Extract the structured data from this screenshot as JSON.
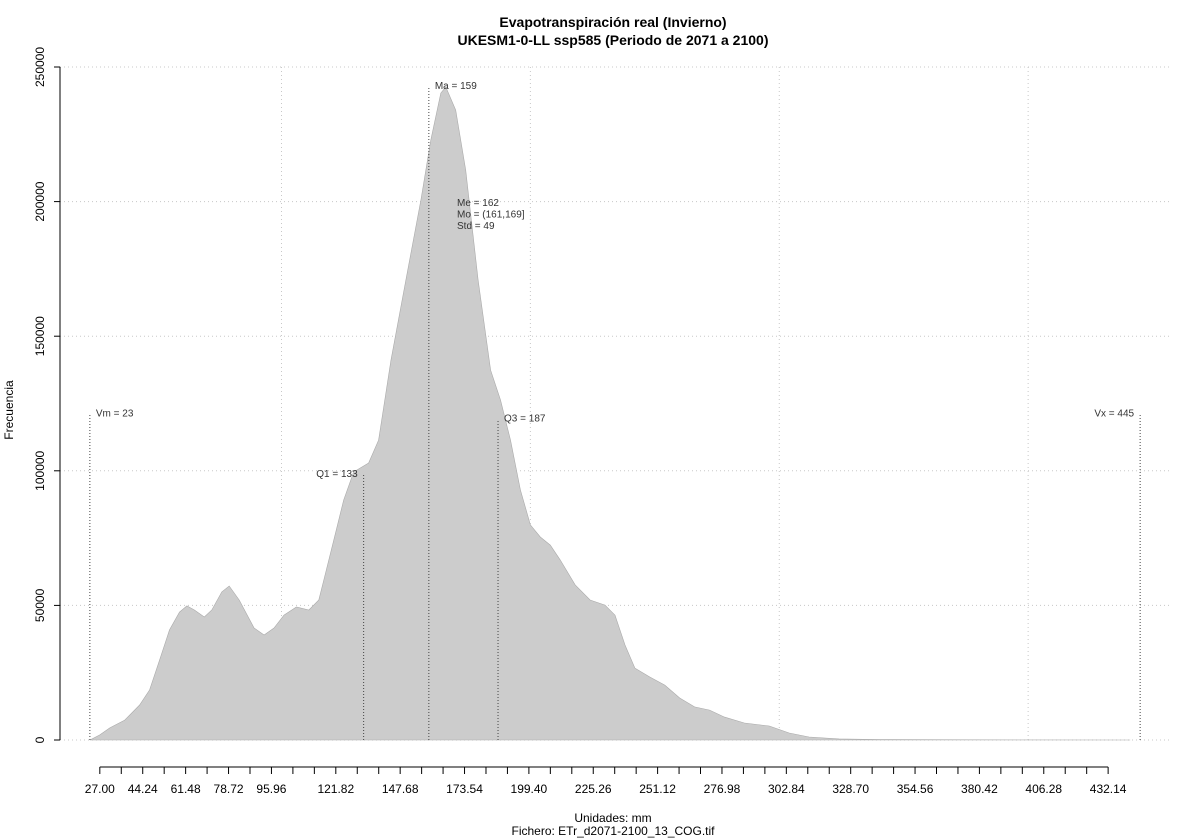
{
  "chart_data": {
    "type": "area",
    "title": "Evapotranspiración real (Invierno)",
    "subtitle": "UKESM1-0-LL ssp585 (Periodo de 2071 a 2100)",
    "xlabel": "Unidades: mm",
    "caption": "Fichero: ETr_d2071-2100_13_COG.tif",
    "ylabel": "Frecuencia",
    "color": "#cccccc",
    "x": [
      23,
      27,
      31,
      37,
      43,
      47,
      51,
      55,
      59,
      62,
      65,
      69,
      72,
      76,
      79,
      83,
      89,
      93,
      97,
      101,
      106,
      111,
      115,
      117,
      121,
      125,
      129,
      135,
      139,
      144,
      150,
      156,
      160,
      164,
      166,
      170,
      174,
      179,
      184,
      188,
      192,
      196,
      200,
      204,
      208,
      212,
      218,
      224,
      230,
      234,
      238,
      242,
      248,
      254,
      260,
      266,
      272,
      278,
      286,
      296,
      304,
      312,
      324,
      340,
      360,
      400,
      441
    ],
    "values": [
      0,
      1900,
      4500,
      7400,
      13000,
      18600,
      29700,
      40900,
      47500,
      49800,
      48300,
      45700,
      48300,
      55000,
      57200,
      52000,
      41600,
      39000,
      41600,
      46400,
      49400,
      48300,
      52000,
      59400,
      74300,
      89200,
      99600,
      102900,
      111400,
      141200,
      170900,
      200600,
      222900,
      240300,
      242600,
      234000,
      211700,
      170900,
      137400,
      126300,
      111400,
      92900,
      79900,
      75400,
      72400,
      66900,
      57600,
      52000,
      50100,
      46400,
      35300,
      26700,
      23400,
      20400,
      15600,
      12300,
      11100,
      8500,
      6300,
      5200,
      2600,
      1100,
      400,
      200,
      100,
      50,
      0
    ],
    "xlim": [
      11,
      457
    ],
    "ylim": [
      0,
      250000
    ],
    "yticks": [
      0,
      50000,
      100000,
      150000,
      200000,
      250000
    ],
    "xticks": [
      {
        "value": 27,
        "label": "27.00"
      },
      44.24,
      61.48,
      78.72,
      95.96,
      121.82,
      147.68,
      173.54,
      {
        "value": 199.4,
        "label": "199.40"
      },
      225.26,
      251.12,
      276.98,
      302.84,
      {
        "value": 328.7,
        "label": "328.70"
      },
      354.56,
      380.42,
      406.28,
      432.14
    ],
    "xminor_ticks": [
      35.62,
      52.86,
      70.1,
      87.34,
      104.58,
      113.2,
      130.44,
      139.06,
      156.3,
      164.92,
      182.16,
      190.78,
      208.02,
      216.64,
      233.88,
      242.5,
      259.74,
      268.36,
      285.6,
      294.22,
      311.46,
      320.08,
      337.32,
      345.94,
      363.18,
      371.8,
      389.04,
      397.66,
      414.9,
      423.52
    ],
    "xgrid": [
      100,
      200,
      300,
      400
    ],
    "grid": true,
    "markers": [
      {
        "label": "Vm = 23",
        "x": 23,
        "y": 121000
      },
      {
        "label": "Q1 = 133",
        "x": 133,
        "y": 98500
      },
      {
        "label": "Ma = 159",
        "x": 159.2,
        "y": 242500
      },
      {
        "label": "Q3 = 187",
        "x": 187,
        "y": 119000
      },
      {
        "label": "Vx = 445",
        "x": 445,
        "y": 121000
      }
    ],
    "stats_text": [
      "Me = 162",
      "Mo = (161,169]",
      "Std = 49"
    ]
  }
}
